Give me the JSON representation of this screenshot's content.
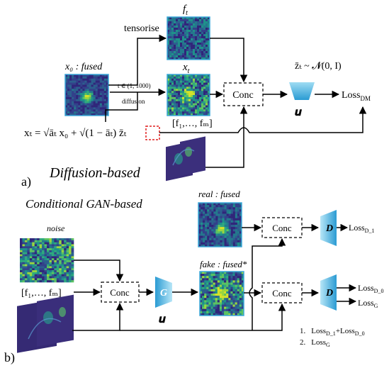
{
  "panel_a": {
    "panel_label": "a)",
    "section_title": "Diffusion-based",
    "x0_label": "x₀ : fused",
    "tensorise_label": "tensorise",
    "ft_label": "f",
    "ft_sub": "t",
    "xt_label": "x",
    "xt_sub": "t",
    "t_range_label": "t ∈ (1, 1000)",
    "diffusion_label": "diffusion",
    "features_label": "[f₁,…, fₘ]",
    "formula": "xₜ = √āₜ x₀ + √(1 − āₜ) z̄ₜ",
    "noise_dist_label": "z̄ₜ ~ 𝓝(0, I)",
    "conc_label": "Conc",
    "unet_label": "𝒖",
    "loss_label": "Loss",
    "loss_sub": "DM"
  },
  "panel_b": {
    "panel_label": "b)",
    "section_title": "Conditional GAN-based",
    "noise_label": "noise",
    "features_label": "[f₁,…, fₘ]",
    "conc_label": "Conc",
    "generator_label": "G",
    "unet_label": "𝒖",
    "real_label": "real : fused",
    "fake_label": "fake : fused*",
    "discriminator_label": "D",
    "loss_d1": "Loss",
    "loss_d1_sub": "D_1",
    "loss_d0": "Loss",
    "loss_d0_sub": "D_0",
    "loss_g": "Loss",
    "loss_g_sub": "G",
    "objectives": [
      {
        "num": "1.",
        "text": "Loss",
        "sub": "D_1",
        "text2": "+Loss",
        "sub2": "D_0"
      },
      {
        "num": "2.",
        "text": "Loss",
        "sub": "G"
      }
    ]
  },
  "colors": {
    "box_border": "#3aa7d9",
    "arrow": "#000000",
    "module_light": "#bfe8f7",
    "module_dark": "#2f9fd6",
    "highlight_red": "#e02020",
    "viridis_low": "#3b2a78",
    "viridis_mid": "#2a8a8a",
    "viridis_high": "#8bd23a"
  }
}
